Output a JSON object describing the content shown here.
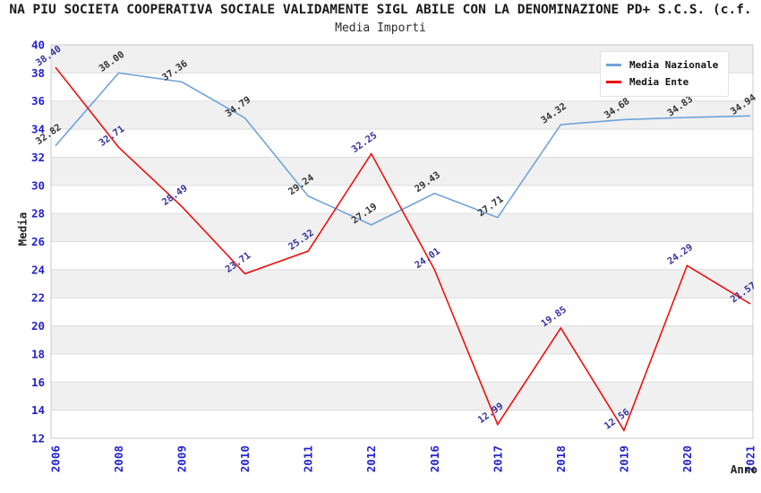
{
  "chart": {
    "title": "NA PIU SOCIETA COOPERATIVA SOCIALE VALIDAMENTE SIGL ABILE CON LA DENOMINAZIONE PD+ S.C.S. (c.f.",
    "subtitle": "Media Importi",
    "ylabel": "Media",
    "xlabel": "Anno"
  },
  "legend": {
    "items": [
      {
        "label": "Media Nazionale",
        "color": "#6FA3DA"
      },
      {
        "label": "Media Ente",
        "color": "#EE1010"
      }
    ]
  },
  "chart_data": {
    "type": "line",
    "title": "Media Importi",
    "xlabel": "Anno",
    "ylabel": "Media",
    "x": [
      "2006",
      "2008",
      "2009",
      "2010",
      "2011",
      "2012",
      "2016",
      "2017",
      "2018",
      "2019",
      "2020",
      "2021"
    ],
    "ylim": [
      12,
      40
    ],
    "ytick_step": 2,
    "grid": true,
    "striped_background": true,
    "legend_position": "top-right",
    "series": [
      {
        "name": "Media Nazionale",
        "color": "#6FA3DA",
        "label_color": "#333333",
        "values": [
          32.82,
          38.0,
          37.36,
          34.79,
          29.24,
          27.19,
          29.43,
          27.71,
          34.32,
          34.68,
          34.83,
          34.94
        ]
      },
      {
        "name": "Media Ente",
        "color": "#EE1010",
        "label_color": "#3333A0",
        "values": [
          38.4,
          32.71,
          28.49,
          23.71,
          25.32,
          32.25,
          24.01,
          12.99,
          19.85,
          12.56,
          24.29,
          21.57
        ]
      }
    ],
    "colors": {
      "band": "#F0F0F0",
      "grid": "#DCDCDC",
      "border": "#C8C8C8",
      "tick": "#2222CC"
    }
  }
}
